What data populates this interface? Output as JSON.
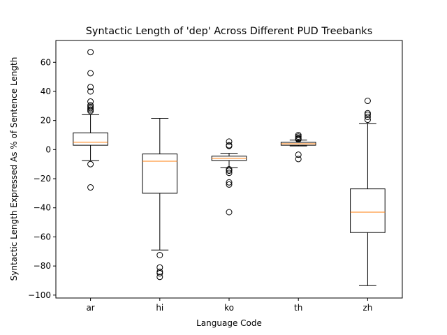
{
  "chart_data": {
    "type": "box",
    "title": "Syntactic Length of 'dep' Across Different PUD Treebanks",
    "xlabel": "Language Code",
    "ylabel": "Syntactic Length Expressed As % of Sentence Length",
    "ylim": [
      -102,
      75
    ],
    "yticks": [
      -100,
      -80,
      -60,
      -40,
      -20,
      0,
      20,
      40,
      60
    ],
    "grid": false,
    "colors": {
      "box": "#000000",
      "median": "#ff7f0e",
      "flier": "#000000"
    },
    "categories": [
      "ar",
      "hi",
      "ko",
      "th",
      "zh"
    ],
    "boxes": [
      {
        "label": "ar",
        "whisker_low": -7.5,
        "q1": 3,
        "median": 5,
        "q3": 11.5,
        "whisker_high": 24,
        "fliers": [
          -26,
          -10,
          26.5,
          27.5,
          28.5,
          29.5,
          30.5,
          33,
          40,
          43,
          52.5,
          67
        ]
      },
      {
        "label": "hi",
        "whisker_low": -69,
        "q1": -30,
        "median": -8,
        "q3": -3,
        "whisker_high": 21.5,
        "fliers": [
          -72.5,
          -81,
          -84,
          -85,
          -87.5
        ]
      },
      {
        "label": "ko",
        "whisker_low": -12.5,
        "q1": -7.5,
        "median": -6,
        "q3": -4.5,
        "whisker_high": -2.5,
        "fliers": [
          -43,
          -24,
          -22.5,
          -16,
          -14.5,
          -13.5,
          2.5,
          3,
          5.5
        ]
      },
      {
        "label": "th",
        "whisker_low": 2.5,
        "q1": 3,
        "median": 4,
        "q3": 5,
        "whisker_high": 6.5,
        "fliers": [
          -6.5,
          -3.5,
          7,
          7.5,
          8,
          9,
          10
        ]
      },
      {
        "label": "zh",
        "whisker_low": -93.5,
        "q1": -57,
        "median": -43,
        "q3": -27,
        "whisker_high": 18,
        "fliers": [
          20.5,
          22.5,
          24,
          25,
          33.5
        ]
      }
    ]
  }
}
